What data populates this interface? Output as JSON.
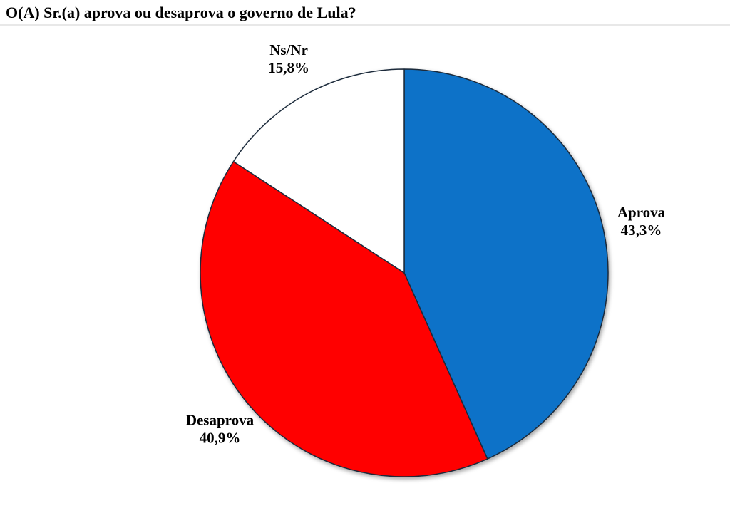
{
  "chart_data": {
    "type": "pie",
    "title": "O(A) Sr.(a) aprova ou desaprova o governo de Lula?",
    "categories": [
      "Aprova",
      "Desaprova",
      "Ns/Nr"
    ],
    "values": [
      43.3,
      40.9,
      15.8
    ],
    "value_labels": [
      "43,3%",
      "40,9%",
      "15,8%"
    ],
    "colors": [
      "#0a72c8",
      "#ff0000",
      "#ffffff"
    ]
  }
}
